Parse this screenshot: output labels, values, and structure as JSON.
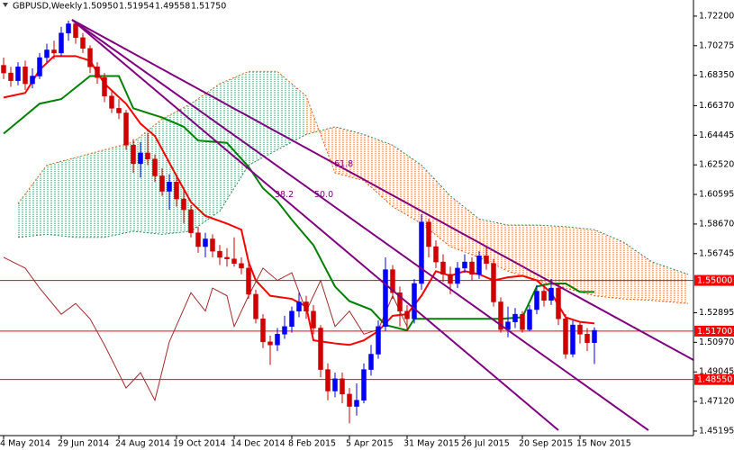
{
  "chart_data": {
    "type": "candlestick",
    "title": "GBPUSD,Weekly",
    "header_values": [
      "1.50950",
      "1.51954",
      "1.49558",
      "1.51750"
    ],
    "xlim": [
      -0.5,
      95.75
    ],
    "ylim": [
      1.449,
      1.7325
    ],
    "xticks": [
      {
        "value": 0,
        "label": "4 May 2014"
      },
      {
        "value": 8,
        "label": "29 Jun 2014"
      },
      {
        "value": 16,
        "label": "24 Aug 2014"
      },
      {
        "value": 24,
        "label": "19 Oct 2014"
      },
      {
        "value": 32,
        "label": "14 Dec 2014"
      },
      {
        "value": 40,
        "label": "8 Feb 2015"
      },
      {
        "value": 48,
        "label": "5 Apr 2015"
      },
      {
        "value": 56,
        "label": "31 May 2015"
      },
      {
        "value": 64,
        "label": "26 Jul 2015"
      },
      {
        "value": 72,
        "label": "20 Sep 2015"
      },
      {
        "value": 80,
        "label": "15 Nov 2015"
      }
    ],
    "yticks": [
      {
        "value": 1.722,
        "label": "1.72200"
      },
      {
        "value": 1.70275,
        "label": "1.70275"
      },
      {
        "value": 1.6835,
        "label": "1.68350"
      },
      {
        "value": 1.6637,
        "label": "1.66370"
      },
      {
        "value": 1.64445,
        "label": "1.64445"
      },
      {
        "value": 1.6252,
        "label": "1.62520"
      },
      {
        "value": 1.60595,
        "label": "1.60595"
      },
      {
        "value": 1.5867,
        "label": "1.58670"
      },
      {
        "value": 1.56745,
        "label": "1.56745"
      },
      {
        "value": 1.52895,
        "label": "1.52895"
      },
      {
        "value": 1.5097,
        "label": "1.50970"
      },
      {
        "value": 1.49045,
        "label": "1.49045"
      },
      {
        "value": 1.4712,
        "label": "1.47120"
      },
      {
        "value": 1.45195,
        "label": "1.45195"
      }
    ],
    "up_color": "#0000ff",
    "down_color": "#d00000",
    "open": [
      1.69,
      1.685,
      1.68,
      1.689,
      1.678,
      1.683,
      1.695,
      1.7,
      1.698,
      1.711,
      1.717,
      1.708,
      1.701,
      1.689,
      1.682,
      1.67,
      1.662,
      1.659,
      1.638,
      1.626,
      1.633,
      1.629,
      1.618,
      1.608,
      1.614,
      1.603,
      1.596,
      1.581,
      1.572,
      1.577,
      1.569,
      1.565,
      1.564,
      1.561,
      1.558,
      1.541,
      1.525,
      1.51,
      1.508,
      1.515,
      1.52,
      1.53,
      1.536,
      1.53,
      1.519,
      1.492,
      1.478,
      1.486,
      1.476,
      1.468,
      1.472,
      1.492,
      1.502,
      1.52,
      1.557,
      1.542,
      1.53,
      1.525,
      1.548,
      1.588,
      1.572,
      1.562,
      1.554,
      1.548,
      1.558,
      1.562,
      1.554,
      1.566,
      1.561,
      1.536,
      1.518,
      1.523,
      1.528,
      1.518,
      1.531,
      1.543,
      1.537,
      1.545,
      1.525,
      1.502,
      1.521,
      1.515,
      1.5095
    ],
    "high": [
      1.695,
      1.689,
      1.692,
      1.693,
      1.688,
      1.698,
      1.704,
      1.706,
      1.715,
      1.719,
      1.718,
      1.711,
      1.703,
      1.692,
      1.685,
      1.674,
      1.668,
      1.661,
      1.642,
      1.64,
      1.646,
      1.632,
      1.623,
      1.619,
      1.618,
      1.609,
      1.599,
      1.585,
      1.581,
      1.58,
      1.573,
      1.571,
      1.578,
      1.565,
      1.561,
      1.544,
      1.528,
      1.514,
      1.519,
      1.527,
      1.533,
      1.542,
      1.54,
      1.534,
      1.521,
      1.496,
      1.49,
      1.49,
      1.48,
      1.483,
      1.496,
      1.508,
      1.524,
      1.565,
      1.56,
      1.546,
      1.534,
      1.551,
      1.593,
      1.59,
      1.576,
      1.567,
      1.559,
      1.562,
      1.567,
      1.565,
      1.569,
      1.572,
      1.564,
      1.539,
      1.533,
      1.532,
      1.53,
      1.534,
      1.547,
      1.548,
      1.551,
      1.548,
      1.528,
      1.524,
      1.523,
      1.519,
      1.51954
    ],
    "low": [
      1.681,
      1.676,
      1.677,
      1.674,
      1.675,
      1.681,
      1.692,
      1.694,
      1.696,
      1.706,
      1.704,
      1.698,
      1.685,
      1.678,
      1.666,
      1.659,
      1.655,
      1.635,
      1.62,
      1.617,
      1.625,
      1.614,
      1.605,
      1.596,
      1.598,
      1.587,
      1.578,
      1.568,
      1.565,
      1.565,
      1.56,
      1.559,
      1.559,
      1.554,
      1.538,
      1.522,
      1.506,
      1.495,
      1.504,
      1.512,
      1.516,
      1.526,
      1.525,
      1.515,
      1.487,
      1.472,
      1.474,
      1.47,
      1.457,
      1.462,
      1.47,
      1.488,
      1.499,
      1.517,
      1.538,
      1.52,
      1.517,
      1.522,
      1.544,
      1.565,
      1.558,
      1.549,
      1.541,
      1.545,
      1.555,
      1.55,
      1.551,
      1.557,
      1.533,
      1.516,
      1.513,
      1.519,
      1.516,
      1.517,
      1.528,
      1.533,
      1.534,
      1.521,
      1.499,
      1.5,
      1.509,
      1.504,
      1.49558
    ],
    "close": [
      1.685,
      1.68,
      1.689,
      1.678,
      1.683,
      1.695,
      1.7,
      1.698,
      1.711,
      1.717,
      1.708,
      1.701,
      1.689,
      1.682,
      1.67,
      1.662,
      1.659,
      1.638,
      1.626,
      1.633,
      1.629,
      1.618,
      1.608,
      1.614,
      1.603,
      1.596,
      1.581,
      1.572,
      1.577,
      1.569,
      1.565,
      1.564,
      1.561,
      1.558,
      1.541,
      1.525,
      1.51,
      1.508,
      1.515,
      1.52,
      1.53,
      1.536,
      1.53,
      1.519,
      1.492,
      1.478,
      1.486,
      1.476,
      1.468,
      1.472,
      1.492,
      1.502,
      1.52,
      1.557,
      1.542,
      1.53,
      1.525,
      1.548,
      1.588,
      1.572,
      1.562,
      1.554,
      1.548,
      1.558,
      1.562,
      1.554,
      1.566,
      1.561,
      1.536,
      1.518,
      1.523,
      1.528,
      1.518,
      1.531,
      1.543,
      1.537,
      1.545,
      1.525,
      1.502,
      1.521,
      1.515,
      1.5095,
      1.5175
    ],
    "lines": [
      {
        "color": "#ff0000",
        "width": 2,
        "x": [
          0,
          3,
          5,
          7,
          10,
          12,
          14,
          17,
          19,
          21,
          24,
          26,
          28,
          31,
          33,
          34,
          35,
          37,
          40,
          42,
          43,
          46,
          48,
          50,
          52,
          54,
          56,
          58,
          60,
          62,
          64,
          66,
          68,
          70,
          72,
          74,
          76,
          78,
          80,
          82
        ],
        "values": [
          1.669,
          1.672,
          1.687,
          1.696,
          1.696,
          1.693,
          1.678,
          1.665,
          1.652,
          1.644,
          1.618,
          1.601,
          1.592,
          1.587,
          1.583,
          1.562,
          1.55,
          1.54,
          1.538,
          1.533,
          1.511,
          1.509,
          1.508,
          1.511,
          1.517,
          1.527,
          1.528,
          1.54,
          1.556,
          1.553,
          1.556,
          1.554,
          1.55,
          1.552,
          1.553,
          1.55,
          1.542,
          1.526,
          1.523,
          1.522
        ]
      },
      {
        "color": "#008000",
        "width": 2,
        "x": [
          0,
          5,
          8,
          12,
          16,
          18,
          22,
          25,
          27,
          31,
          34,
          36,
          38,
          40,
          43,
          46,
          48,
          51,
          53,
          56,
          57,
          69,
          72,
          74,
          76,
          78,
          80,
          82
        ],
        "values": [
          1.6455,
          1.665,
          1.668,
          1.683,
          1.683,
          1.662,
          1.656,
          1.65,
          1.641,
          1.6395,
          1.624,
          1.61,
          1.6015,
          1.5895,
          1.573,
          1.546,
          1.5365,
          1.531,
          1.521,
          1.5175,
          1.525,
          1.525,
          1.526,
          1.546,
          1.548,
          1.548,
          1.5425,
          1.5425
        ]
      },
      {
        "color": "#a52a2a",
        "width": 1,
        "x": [
          0,
          3,
          5,
          8,
          10,
          12,
          14,
          17,
          19,
          21,
          23,
          26,
          28,
          29,
          31,
          32,
          34,
          36,
          38,
          40,
          42,
          44,
          46,
          48,
          50,
          52,
          54,
          56
        ],
        "values": [
          1.565,
          1.558,
          1.545,
          1.528,
          1.535,
          1.525,
          1.508,
          1.48,
          1.49,
          1.472,
          1.51,
          1.542,
          1.53,
          1.545,
          1.54,
          1.52,
          1.54,
          1.558,
          1.55,
          1.555,
          1.53,
          1.55,
          1.52,
          1.53,
          1.515,
          1.518,
          1.54,
          1.52
        ]
      }
    ],
    "cloud": {
      "up_color": "#2e8b57",
      "down_color": "#e0601a",
      "x": [
        2,
        6,
        10,
        14,
        18,
        22,
        26,
        30,
        34,
        38,
        42,
        46,
        50,
        54,
        58,
        62,
        66,
        70,
        74,
        78,
        82,
        86,
        90,
        95
      ],
      "span_a": [
        1.6,
        1.625,
        1.63,
        1.635,
        1.64,
        1.655,
        1.665,
        1.678,
        1.686,
        1.686,
        1.67,
        1.62,
        1.615,
        1.598,
        1.587,
        1.572,
        1.565,
        1.556,
        1.55,
        1.545,
        1.54,
        1.538,
        1.537,
        1.535
      ],
      "span_b": [
        1.578,
        1.58,
        1.578,
        1.578,
        1.582,
        1.58,
        1.582,
        1.595,
        1.625,
        1.635,
        1.645,
        1.65,
        1.645,
        1.638,
        1.625,
        1.605,
        1.59,
        1.586,
        1.586,
        1.585,
        1.583,
        1.575,
        1.562,
        1.554
      ]
    },
    "trendlines": [
      {
        "color": "#800080",
        "x": [
          9.5,
          95.75
        ],
        "values": [
          1.7196,
          1.4982
        ],
        "label": "61.8"
      },
      {
        "color": "#800080",
        "x": [
          9.5,
          89.5
        ],
        "values": [
          1.7196,
          1.4525
        ],
        "label": "50.0"
      },
      {
        "color": "#800080",
        "x": [
          9.5,
          77
        ],
        "values": [
          1.7196,
          1.4525
        ],
        "label": "38.2"
      }
    ],
    "levels": [
      {
        "value": 1.55,
        "label": "1.55000"
      },
      {
        "value": 1.517,
        "label": "1.51700"
      },
      {
        "value": 1.4855,
        "label": "1.48550"
      }
    ],
    "level_color": "#ff0000"
  }
}
